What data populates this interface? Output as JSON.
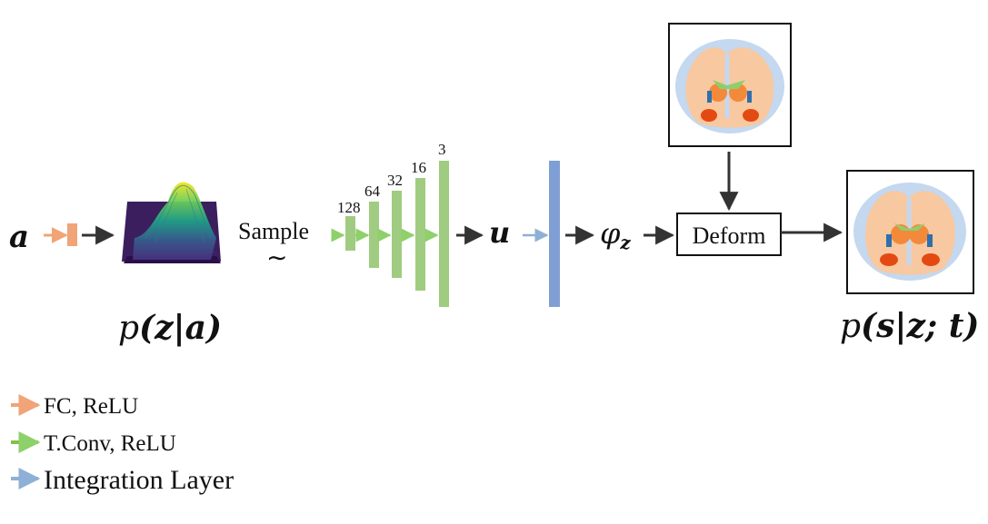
{
  "nodes": {
    "input_a": "a",
    "dist_label_p": "p",
    "dist_label_args": "(z|a)",
    "sample_label": "Sample",
    "tilde": "∼",
    "u_label": "u",
    "phi_label": "φ",
    "phi_sub": "z",
    "deform_label": "Deform",
    "output_label_p": "p",
    "output_label_args": "(s|z; t)"
  },
  "conv_channels": [
    "128",
    "64",
    "32",
    "16",
    "3"
  ],
  "legend": [
    {
      "label": "FC, ReLU",
      "color": "#f0a477"
    },
    {
      "label": "T.Conv, ReLU",
      "color": "#7fc24a"
    },
    {
      "label": "Integration Layer",
      "color": "#8fb0d6"
    }
  ],
  "colors": {
    "fc": "#f0a477",
    "conv": "#9fcc80",
    "integration": "#7f9fd4",
    "arrow": "#333333",
    "conv_arrow": "#8ed06a",
    "int_arrow": "#8fb0d6"
  },
  "icons": {
    "surface": "gaussian-surface-plot",
    "atlas": "brain-atlas-slice",
    "output": "brain-segmentation-slice"
  }
}
